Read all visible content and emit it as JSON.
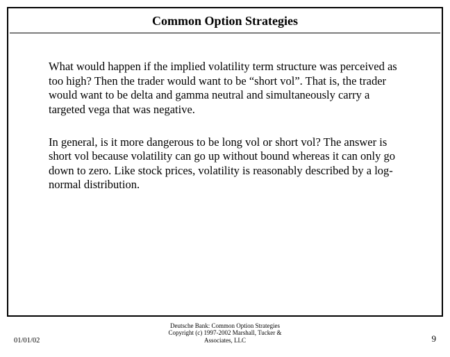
{
  "slide": {
    "title": "Common Option Strategies",
    "paragraph1": "What would happen if the implied volatility term structure was perceived as too high?  Then the trader would want to be “short vol”.  That is, the trader would want to be delta and gamma neutral and simultaneously carry a targeted vega that was negative.",
    "paragraph2": "In general, is it more dangerous to be long vol or short vol?  The answer is short vol because volatility can go up without bound whereas it can only go down to zero.  Like stock prices, volatility is reasonably described by a log-normal distribution."
  },
  "footer": {
    "date": "01/01/02",
    "line1": "Deutsche Bank: Common Option Strategies",
    "line2": "Copyright (c) 1997-2002 Marshall, Tucker &",
    "line3": "Associates, LLC",
    "page": "9"
  }
}
